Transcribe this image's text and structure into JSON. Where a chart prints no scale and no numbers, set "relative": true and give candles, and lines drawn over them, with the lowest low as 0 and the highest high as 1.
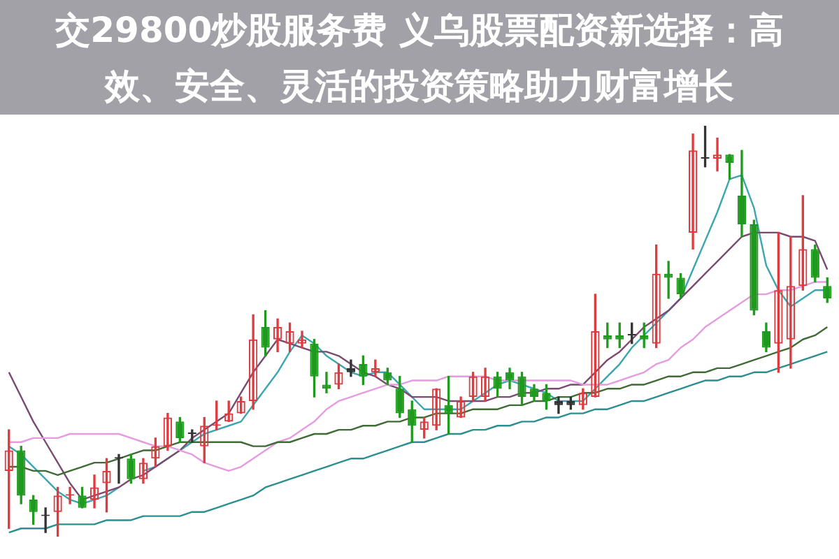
{
  "chart_data": {
    "type": "candlestick",
    "title": "交29800炒股服务费 义乌股票配资新选择：高效、安全、灵活的投资策略助力财富增长",
    "relative": true,
    "legend": false,
    "marker": "none",
    "categories": [
      null,
      null,
      null,
      null,
      null,
      null,
      null,
      null,
      null,
      null,
      null,
      null,
      null,
      null,
      null,
      null,
      null,
      null,
      null,
      null,
      null,
      null,
      null,
      null,
      null,
      null,
      null,
      null,
      null,
      null,
      null,
      null,
      null,
      null,
      null,
      null,
      null,
      null,
      null,
      null,
      null,
      null,
      null,
      null,
      null,
      null,
      null,
      null,
      null,
      null,
      null,
      null,
      null,
      null,
      null,
      null,
      null,
      null,
      null,
      null,
      null,
      null,
      null,
      null,
      null,
      null,
      null,
      null
    ],
    "ohlc": [
      [
        0.16,
        0.26,
        0.02,
        0.21
      ],
      [
        0.21,
        0.22,
        0.08,
        0.1
      ],
      [
        0.09,
        0.1,
        0.03,
        0.06
      ],
      [
        0.05,
        0.07,
        0.01,
        0.05
      ],
      [
        0.06,
        0.12,
        0,
        0.1
      ],
      [
        0.1,
        0.12,
        0.08,
        0.1
      ],
      [
        0.1,
        0.12,
        0.07,
        0.07
      ],
      [
        0.09,
        0.15,
        0.07,
        0.12
      ],
      [
        0.13,
        0.19,
        0.06,
        0.16
      ],
      [
        0.19,
        0.2,
        0.13,
        0.19
      ],
      [
        0.19,
        0.2,
        0.13,
        0.14
      ],
      [
        0.14,
        0.19,
        0.13,
        0.18
      ],
      [
        0.19,
        0.24,
        0.17,
        0.22
      ],
      [
        0.22,
        0.3,
        0.21,
        0.29
      ],
      [
        0.28,
        0.29,
        0.23,
        0.24
      ],
      [
        0.25,
        0.26,
        0.23,
        0.25
      ],
      [
        0.22,
        0.29,
        0.18,
        0.27
      ],
      [
        0.27,
        0.33,
        0.26,
        0.27
      ],
      [
        0.28,
        0.33,
        0.28,
        0.3
      ],
      [
        0.3,
        0.34,
        0.3,
        0.33
      ],
      [
        0.33,
        0.54,
        0.31,
        0.48
      ],
      [
        0.51,
        0.55,
        0.44,
        0.46
      ],
      [
        0.48,
        0.53,
        0.45,
        0.51
      ],
      [
        0.47,
        0.52,
        0.45,
        0.5
      ],
      [
        0.47,
        0.5,
        0.46,
        0.48
      ],
      [
        0.47,
        0.48,
        0.34,
        0.39
      ],
      [
        0.37,
        0.4,
        0.35,
        0.36
      ],
      [
        0.37,
        0.42,
        0.36,
        0.4
      ],
      [
        0.41,
        0.43,
        0.39,
        0.4
      ],
      [
        0.42,
        0.44,
        0.37,
        0.39
      ],
      [
        0.4,
        0.43,
        0.39,
        0.41
      ],
      [
        0.4,
        0.41,
        0.37,
        0.38
      ],
      [
        0.36,
        0.39,
        0.29,
        0.3
      ],
      [
        0.31,
        0.33,
        0.23,
        0.27
      ],
      [
        0.26,
        0.29,
        0.24,
        0.28
      ],
      [
        0.27,
        0.36,
        0.26,
        0.36
      ],
      [
        0.32,
        0.39,
        0.25,
        0.3
      ],
      [
        0.29,
        0.34,
        0.29,
        0.33
      ],
      [
        0.34,
        0.4,
        0.33,
        0.39
      ],
      [
        0.34,
        0.41,
        0.33,
        0.39
      ],
      [
        0.39,
        0.4,
        0.34,
        0.36
      ],
      [
        0.4,
        0.41,
        0.36,
        0.38
      ],
      [
        0.39,
        0.4,
        0.32,
        0.34
      ],
      [
        0.36,
        0.37,
        0.33,
        0.34
      ],
      [
        0.35,
        0.37,
        0.31,
        0.33
      ],
      [
        0.33,
        0.34,
        0.3,
        0.32
      ],
      [
        0.33,
        0.34,
        0.31,
        0.32
      ],
      [
        0.32,
        0.36,
        0.31,
        0.35
      ],
      [
        0.34,
        0.59,
        0.34,
        0.5
      ],
      [
        0.49,
        0.52,
        0.46,
        0.48
      ],
      [
        0.49,
        0.52,
        0.46,
        0.48
      ],
      [
        0.49,
        0.52,
        0.47,
        0.49
      ],
      [
        0.49,
        0.52,
        0.46,
        0.48
      ],
      [
        0.47,
        0.71,
        0.46,
        0.64
      ],
      [
        0.64,
        0.67,
        0.58,
        0.63
      ],
      [
        0.63,
        0.64,
        0.58,
        0.59
      ],
      [
        0.74,
        0.98,
        0.7,
        0.94
      ],
      [
        0.92,
        1,
        0.9,
        0.92
      ],
      [
        0.92,
        0.97,
        0.89,
        0.93
      ],
      [
        0.93,
        0.93,
        0.87,
        0.91
      ],
      [
        0.83,
        0.94,
        0.73,
        0.76
      ],
      [
        0.76,
        0.77,
        0.54,
        0.55
      ],
      [
        0.5,
        0.52,
        0.45,
        0.46
      ],
      [
        0.47,
        0.74,
        0.4,
        0.6
      ],
      [
        0.48,
        0.73,
        0.41,
        0.61
      ],
      [
        0.61,
        0.83,
        0.6,
        0.7
      ],
      [
        0.7,
        0.71,
        0.62,
        0.63
      ],
      [
        0.61,
        0.63,
        0.57,
        0.58
      ]
    ],
    "colors": [
      "#e03a3e",
      "#1f9a1f",
      "#1f9a1f",
      "#333333",
      "#e03a3e",
      "#e03a3e",
      "#1f9a1f",
      "#e03a3e",
      "#e03a3e",
      "#333333",
      "#1f9a1f",
      "#e03a3e",
      "#e03a3e",
      "#e03a3e",
      "#1f9a1f",
      "#333333",
      "#e03a3e",
      "#e03a3e",
      "#e03a3e",
      "#e03a3e",
      "#e03a3e",
      "#1f9a1f",
      "#e03a3e",
      "#e03a3e",
      "#e03a3e",
      "#1f9a1f",
      "#1f9a1f",
      "#e03a3e",
      "#333333",
      "#1f9a1f",
      "#e03a3e",
      "#1f9a1f",
      "#1f9a1f",
      "#1f9a1f",
      "#e03a3e",
      "#e03a3e",
      "#1f9a1f",
      "#e03a3e",
      "#e03a3e",
      "#e03a3e",
      "#1f9a1f",
      "#1f9a1f",
      "#1f9a1f",
      "#1f9a1f",
      "#1f9a1f",
      "#333333",
      "#333333",
      "#e03a3e",
      "#e03a3e",
      "#1f9a1f",
      "#1f9a1f",
      "#333333",
      "#1f9a1f",
      "#e03a3e",
      "#1f9a1f",
      "#1f9a1f",
      "#e03a3e",
      "#333333",
      "#e03a3e",
      "#1f9a1f",
      "#1f9a1f",
      "#1f9a1f",
      "#1f9a1f",
      "#e03a3e",
      "#e03a3e",
      "#e03a3e",
      "#1f9a1f",
      "#1f9a1f"
    ],
    "series": [
      {
        "type": "line",
        "color": "#2b8f8f",
        "values": [
          0.01,
          0.02,
          0.02,
          0.02,
          0.03,
          0.03,
          0.03,
          0.03,
          0.04,
          0.04,
          0.04,
          0.05,
          0.05,
          0.05,
          0.05,
          0.06,
          0.06,
          0.07,
          0.08,
          0.09,
          0.1,
          0.12,
          0.13,
          0.14,
          0.15,
          0.16,
          0.17,
          0.18,
          0.19,
          0.19,
          0.2,
          0.21,
          0.22,
          0.23,
          0.23,
          0.24,
          0.25,
          0.25,
          0.26,
          0.26,
          0.27,
          0.27,
          0.28,
          0.28,
          0.29,
          0.29,
          0.3,
          0.3,
          0.31,
          0.31,
          0.32,
          0.33,
          0.33,
          0.34,
          0.35,
          0.36,
          0.37,
          0.38,
          0.38,
          0.39,
          0.39,
          0.4,
          0.4,
          0.41,
          0.42,
          0.43,
          0.44,
          0.45
        ]
      },
      {
        "type": "line",
        "color": "#3f6b35",
        "values": [
          0.17,
          0.17,
          0.16,
          0.16,
          0.15,
          0.16,
          0.17,
          0.18,
          0.18,
          0.19,
          0.2,
          0.21,
          0.21,
          0.22,
          0.23,
          0.23,
          0.23,
          0.23,
          0.23,
          0.23,
          0.22,
          0.22,
          0.23,
          0.23,
          0.24,
          0.25,
          0.25,
          0.26,
          0.26,
          0.27,
          0.27,
          0.28,
          0.28,
          0.29,
          0.29,
          0.3,
          0.3,
          0.3,
          0.31,
          0.31,
          0.31,
          0.32,
          0.32,
          0.33,
          0.33,
          0.34,
          0.34,
          0.35,
          0.35,
          0.36,
          0.36,
          0.37,
          0.37,
          0.38,
          0.39,
          0.39,
          0.4,
          0.4,
          0.41,
          0.41,
          0.42,
          0.43,
          0.44,
          0.45,
          0.46,
          0.48,
          0.49,
          0.51
        ]
      },
      {
        "type": "line",
        "color": "#e59be0",
        "values": [
          0.23,
          0.23,
          0.24,
          0.24,
          0.24,
          0.25,
          0.25,
          0.25,
          0.25,
          0.25,
          0.24,
          0.23,
          0.22,
          0.22,
          0.21,
          0.2,
          0.18,
          0.17,
          0.16,
          0.17,
          0.19,
          0.21,
          0.23,
          0.24,
          0.26,
          0.28,
          0.31,
          0.33,
          0.34,
          0.35,
          0.36,
          0.37,
          0.37,
          0.38,
          0.38,
          0.38,
          0.39,
          0.39,
          0.39,
          0.39,
          0.38,
          0.38,
          0.38,
          0.38,
          0.38,
          0.38,
          0.38,
          0.37,
          0.37,
          0.37,
          0.38,
          0.39,
          0.4,
          0.42,
          0.43,
          0.46,
          0.48,
          0.51,
          0.53,
          0.55,
          0.57,
          0.59,
          0.59,
          0.6,
          0.6,
          0.61,
          0.62,
          0.62
        ]
      },
      {
        "type": "line",
        "color": "#7a4a72",
        "values": [
          0.4,
          0.34,
          0.28,
          0.23,
          0.18,
          0.13,
          0.09,
          0.1,
          0.11,
          0.12,
          0.14,
          0.15,
          0.17,
          0.19,
          0.21,
          0.24,
          0.26,
          0.28,
          0.3,
          0.35,
          0.4,
          0.44,
          0.48,
          0.47,
          0.46,
          0.45,
          0.45,
          0.44,
          0.42,
          0.4,
          0.39,
          0.37,
          0.36,
          0.34,
          0.34,
          0.34,
          0.33,
          0.33,
          0.33,
          0.33,
          0.34,
          0.34,
          0.35,
          0.35,
          0.36,
          0.36,
          0.37,
          0.37,
          0.4,
          0.43,
          0.45,
          0.48,
          0.51,
          0.53,
          0.55,
          0.58,
          0.61,
          0.64,
          0.67,
          0.7,
          0.73,
          0.74,
          0.74,
          0.74,
          0.73,
          0.73,
          0.72,
          0.65
        ]
      },
      {
        "type": "line",
        "color": "#3aa6b0",
        "values": [
          0.22,
          0.2,
          0.17,
          0.14,
          0.11,
          0.09,
          0.08,
          0.09,
          0.1,
          0.12,
          null,
          0.16,
          0.17,
          0.19,
          0.21,
          0.23,
          0.25,
          0.26,
          0.27,
          0.28,
          0.32,
          0.36,
          0.4,
          0.45,
          0.49,
          0.47,
          0.44,
          0.42,
          0.4,
          0.39,
          0.4,
          0.4,
          0.37,
          0.34,
          0.31,
          0.31,
          0.31,
          0.31,
          0.33,
          0.35,
          0.37,
          0.38,
          0.37,
          0.36,
          0.35,
          0.33,
          0.33,
          0.33,
          0.36,
          0.39,
          0.42,
          0.46,
          0.49,
          0.52,
          0.55,
          0.58,
          0.65,
          0.72,
          0.79,
          0.87,
          0.88,
          0.8,
          0.66,
          0.6,
          0.56,
          0.58,
          0.6,
          0.6
        ]
      }
    ]
  }
}
